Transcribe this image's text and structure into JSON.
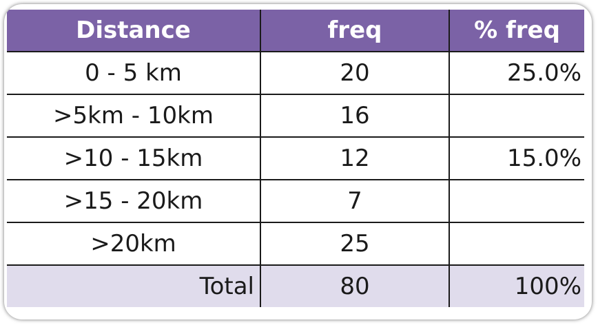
{
  "table": {
    "headers": [
      "Distance",
      "freq",
      "% freq"
    ],
    "rows": [
      {
        "distance": "0 - 5 km",
        "freq": "20",
        "pct": "25.0%"
      },
      {
        "distance": ">5km - 10km",
        "freq": "16",
        "pct": ""
      },
      {
        "distance": ">10 - 15km",
        "freq": "12",
        "pct": "15.0%"
      },
      {
        "distance": ">15 - 20km",
        "freq": "7",
        "pct": ""
      },
      {
        "distance": ">20km",
        "freq": "25",
        "pct": ""
      }
    ],
    "total": {
      "label": "Total",
      "freq": "80",
      "pct": "100%"
    }
  },
  "colors": {
    "header_bg": "#7b62a6",
    "header_text": "#ffffff",
    "total_bg": "#e0dcec",
    "border": "#1a1a1a"
  }
}
